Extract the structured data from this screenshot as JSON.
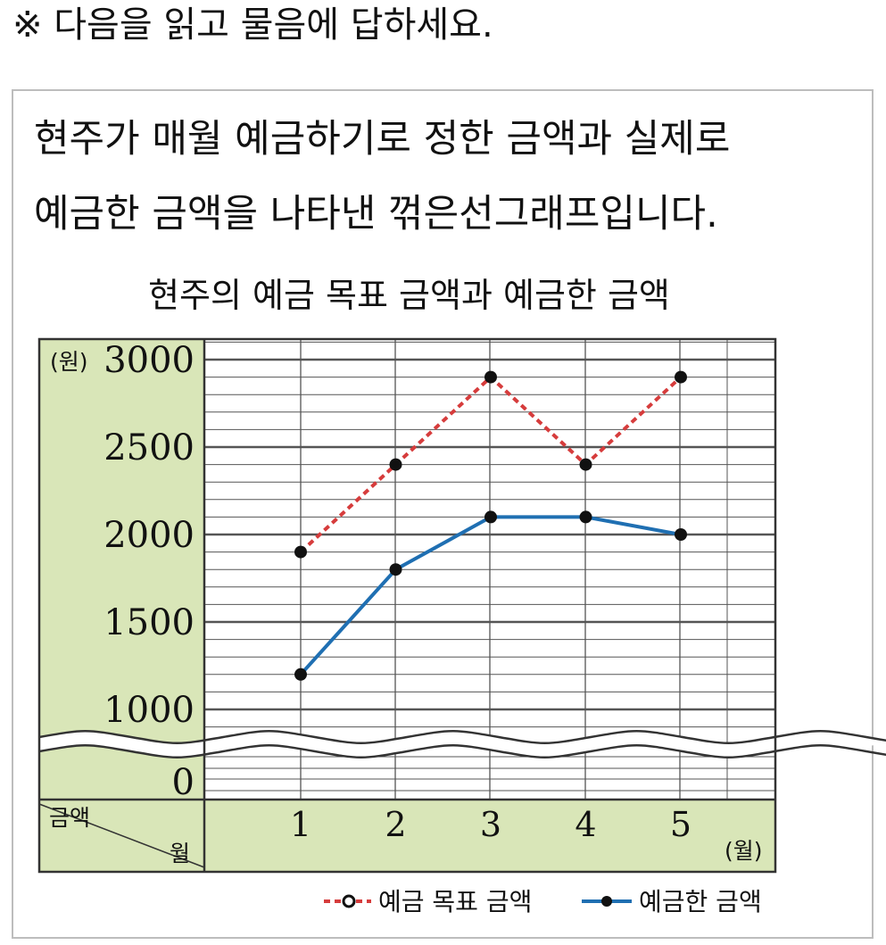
{
  "instruction": "※ 다음을 읽고 물음에 답하세요.",
  "description": [
    "현주가 매월 예금하기로 정한 금액과 실제로",
    "예금한 금액을 나타낸 꺾은선그래프입니다."
  ],
  "chart_data": {
    "type": "line",
    "title": "현주의 예금 목표 금액과 예금한 금액",
    "ylabel_unit": "(원)",
    "xlabel_unit": "(월)",
    "corner_top": "금액",
    "corner_bottom": "월",
    "categories": [
      "1",
      "2",
      "3",
      "4",
      "5"
    ],
    "y_ticks": [
      "3000",
      "2500",
      "2000",
      "1500",
      "1000",
      "0"
    ],
    "ylim": [
      1000,
      3000
    ],
    "axis_break": "between 0 and 1000",
    "grid": true,
    "legend_position": "bottom-right",
    "series": [
      {
        "name": "예금 목표 금액",
        "values": [
          1900,
          2400,
          2900,
          2400,
          2900
        ],
        "color": "#d63c3c",
        "style": "dashed"
      },
      {
        "name": "예금한 금액",
        "values": [
          1200,
          1800,
          2100,
          2100,
          2000
        ],
        "color": "#1f6fb2",
        "style": "solid"
      }
    ],
    "colors": {
      "axis_band": "#d9e6b8",
      "grid": "#555555",
      "point": "#111111"
    }
  }
}
